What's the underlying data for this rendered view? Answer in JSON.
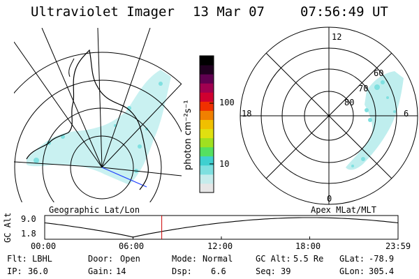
{
  "header": {
    "instrument": "Ultraviolet Imager",
    "date": "13 Mar 07",
    "time": "07:56:49 UT"
  },
  "panels": {
    "left_label": "Geographic Lat/Lon",
    "right_label": "Apex MLat/MLT"
  },
  "colorbar": {
    "label": "photon cm⁻²s⁻¹",
    "ticks": [
      "100",
      "10"
    ],
    "scale": "log",
    "colors": [
      "#e6e6e6",
      "#c6ecec",
      "#7fe0e0",
      "#3fd0d0",
      "#55e060",
      "#a0e020",
      "#e0e010",
      "#f0c000",
      "#f08000",
      "#f03000",
      "#d00030",
      "#a00050",
      "#600050",
      "#200020",
      "#000000"
    ]
  },
  "polar_plot": {
    "mlt_labels": [
      "12",
      "18",
      "6",
      "0"
    ],
    "mlat_labels": [
      "80",
      "70",
      "60"
    ]
  },
  "altitude_plot": {
    "ylabel": "GC Alt",
    "yticks": [
      "9.0",
      "1.8"
    ],
    "xticks": [
      "00:00",
      "06:00",
      "12:00",
      "18:00",
      "23:59"
    ],
    "current_time_hours": 7.95,
    "marker_color": "#cc0000"
  },
  "info": {
    "row1": [
      {
        "label": "Flt:",
        "value": "LBHL"
      },
      {
        "label": "Door:",
        "value": "Open"
      },
      {
        "label": "Mode:",
        "value": "Normal"
      },
      {
        "label": "GC Alt:",
        "value": "5.5 Re"
      },
      {
        "label": "GLat:",
        "value": "-78.9"
      }
    ],
    "row2": [
      {
        "label": "IP:",
        "value": "36.0"
      },
      {
        "label": "Gain:",
        "value": "14"
      },
      {
        "label": "Dsp:",
        "value": "6.6"
      },
      {
        "label": "Seq:",
        "value": "39"
      },
      {
        "label": "GLon:",
        "value": "305.4"
      }
    ]
  }
}
